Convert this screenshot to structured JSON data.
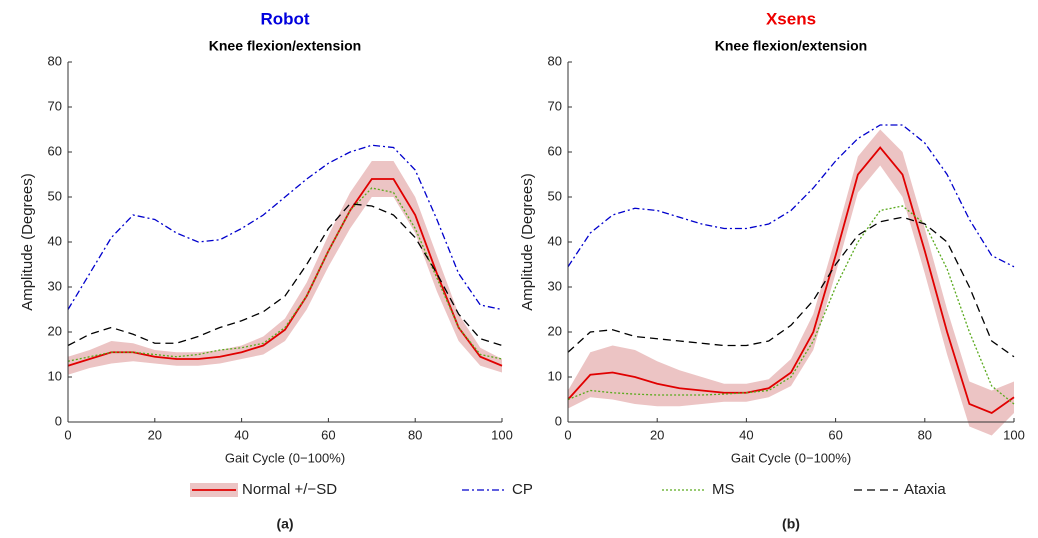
{
  "chart_data": [
    {
      "type": "line",
      "title": "Robot",
      "title_color": "#0000dd",
      "subtitle": "Knee flexion/extension",
      "xlabel": "Gait Cycle (0−100%)",
      "ylabel": "Amplitude (Degrees)",
      "label": "(a)",
      "xlim": [
        0,
        100
      ],
      "xticks": [
        0,
        20,
        40,
        60,
        80,
        100
      ],
      "ylim": [
        0,
        80
      ],
      "yticks": [
        0,
        10,
        20,
        30,
        40,
        50,
        60,
        70,
        80
      ],
      "x": [
        0,
        5,
        10,
        15,
        20,
        25,
        30,
        35,
        40,
        45,
        50,
        55,
        60,
        65,
        70,
        75,
        80,
        85,
        90,
        95,
        100
      ],
      "series": [
        {
          "name": "Normal +/−SD",
          "color": "#e00000",
          "band_color": "#ecc4c4",
          "dash": "solid",
          "values": [
            12.5,
            14,
            15.5,
            15.5,
            14.5,
            14,
            14,
            14.5,
            15.5,
            17,
            20.5,
            28,
            38,
            47,
            54,
            54,
            46,
            33,
            21,
            14.5,
            12.5
          ],
          "sd": [
            2,
            2,
            2.5,
            2,
            1.5,
            1.5,
            1.5,
            1.5,
            1.5,
            2,
            2.5,
            3,
            3.5,
            4,
            4,
            4,
            4,
            4,
            3,
            2,
            1.5
          ]
        },
        {
          "name": "CP",
          "color": "#0000cc",
          "dash": "dashdot",
          "values": [
            25,
            33,
            41,
            46,
            45,
            42,
            40,
            40.5,
            43,
            46,
            50,
            54,
            57.5,
            60,
            61.5,
            61,
            56,
            45,
            33,
            26,
            25
          ]
        },
        {
          "name": "MS",
          "color": "#5aaa1e",
          "dash": "dotted",
          "values": [
            13.5,
            14.5,
            15.5,
            15.5,
            15,
            14.5,
            15,
            16,
            16.5,
            17.5,
            21,
            28,
            38,
            47,
            52,
            51,
            43,
            32,
            21,
            15,
            14
          ]
        },
        {
          "name": "Ataxia",
          "color": "#000000",
          "dash": "dashed",
          "values": [
            17,
            19.5,
            21,
            19.5,
            17.5,
            17.5,
            19,
            21,
            22.5,
            24.5,
            28,
            35,
            43,
            48.5,
            48,
            46,
            41,
            33,
            24,
            18.5,
            17
          ]
        }
      ]
    },
    {
      "type": "line",
      "title": "Xsens",
      "title_color": "#ee0000",
      "subtitle": "Knee flexion/extension",
      "xlabel": "Gait Cycle (0−100%)",
      "ylabel": "Amplitude (Degrees)",
      "label": "(b)",
      "xlim": [
        0,
        100
      ],
      "xticks": [
        0,
        20,
        40,
        60,
        80,
        100
      ],
      "ylim": [
        0,
        80
      ],
      "yticks": [
        0,
        10,
        20,
        30,
        40,
        50,
        60,
        70,
        80
      ],
      "x": [
        0,
        5,
        10,
        15,
        20,
        25,
        30,
        35,
        40,
        45,
        50,
        55,
        60,
        65,
        70,
        75,
        80,
        85,
        90,
        95,
        100
      ],
      "series": [
        {
          "name": "Normal +/−SD",
          "color": "#e00000",
          "band_color": "#ecc4c4",
          "dash": "solid",
          "values": [
            5,
            10.5,
            11,
            10,
            8.5,
            7.5,
            7,
            6.5,
            6.5,
            7.5,
            11,
            20,
            37,
            55,
            61,
            55,
            38,
            20,
            4,
            2,
            5.5
          ],
          "sd": [
            2,
            5,
            6,
            6,
            5,
            4,
            3,
            2,
            2,
            2,
            3,
            4,
            4,
            4,
            4,
            5,
            5,
            5,
            5,
            5,
            3.5
          ]
        },
        {
          "name": "CP",
          "color": "#0000cc",
          "dash": "dashdot",
          "values": [
            34.5,
            42,
            46,
            47.5,
            47,
            45.5,
            44,
            43,
            43,
            44,
            47,
            52,
            58,
            63,
            66,
            66,
            62,
            55,
            45,
            37,
            34.5
          ]
        },
        {
          "name": "MS",
          "color": "#5aaa1e",
          "dash": "dotted",
          "values": [
            5,
            7,
            6.5,
            6.2,
            6,
            6,
            6,
            6.2,
            6.5,
            7,
            10,
            18,
            30,
            40,
            47,
            48,
            44,
            34,
            20,
            8,
            4
          ]
        },
        {
          "name": "Ataxia",
          "color": "#000000",
          "dash": "dashed",
          "values": [
            15.5,
            20,
            20.5,
            19,
            18.5,
            18,
            17.5,
            17,
            17,
            18,
            21.5,
            27,
            35,
            41.5,
            44.5,
            45.5,
            44,
            40,
            30,
            18,
            14.5
          ]
        }
      ]
    }
  ]
}
